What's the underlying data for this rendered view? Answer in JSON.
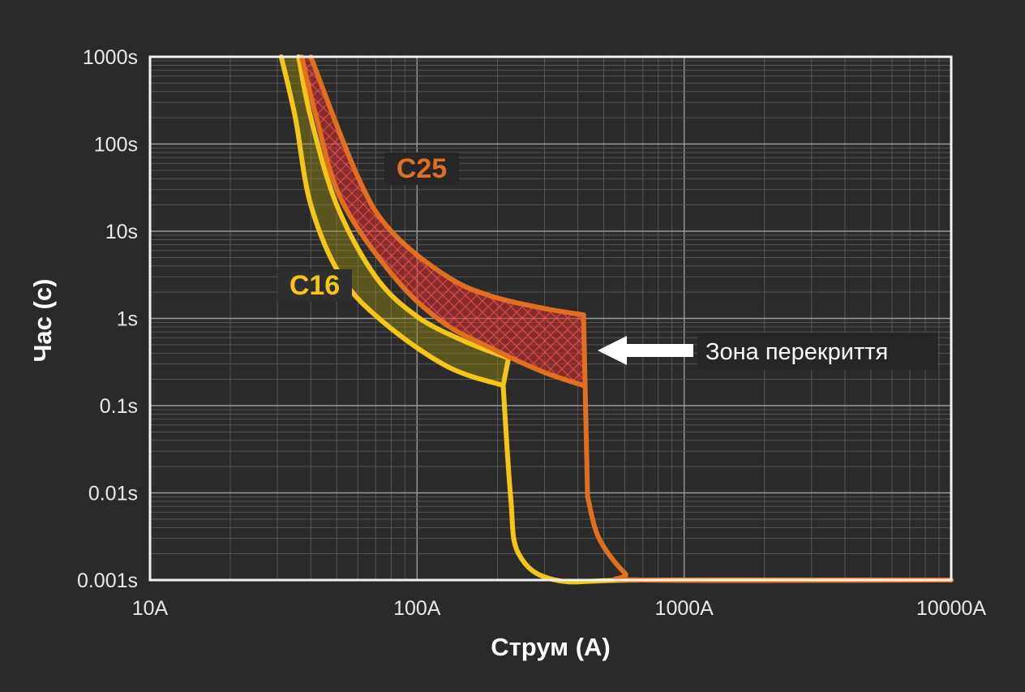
{
  "chart_data": {
    "type": "line",
    "xlabel": "Струм (А)",
    "ylabel": "Час (с)",
    "x_scale": "log",
    "y_scale": "log",
    "xlim": [
      10,
      10000
    ],
    "ylim": [
      0.001,
      1000
    ],
    "grid": true,
    "x_ticks": [
      {
        "value": 10,
        "label": "10A"
      },
      {
        "value": 100,
        "label": "100A"
      },
      {
        "value": 1000,
        "label": "1000A"
      },
      {
        "value": 10000,
        "label": "10000A"
      }
    ],
    "y_ticks": [
      {
        "value": 0.001,
        "label": "0.001s"
      },
      {
        "value": 0.01,
        "label": "0.01s"
      },
      {
        "value": 0.1,
        "label": "0.1s"
      },
      {
        "value": 1,
        "label": "1s"
      },
      {
        "value": 10,
        "label": "10s"
      },
      {
        "value": 100,
        "label": "100s"
      },
      {
        "value": 1000,
        "label": "1000s"
      }
    ],
    "series": [
      {
        "name": "C16",
        "color": "#f5c518",
        "upper": [
          [
            36,
            1000
          ],
          [
            40,
            200
          ],
          [
            50,
            20
          ],
          [
            70,
            3
          ],
          [
            100,
            1.05
          ],
          [
            150,
            0.55
          ],
          [
            220,
            0.35
          ]
        ],
        "lower": [
          [
            31,
            1000
          ],
          [
            35,
            200
          ],
          [
            40,
            20
          ],
          [
            52,
            3
          ],
          [
            75,
            0.9
          ],
          [
            130,
            0.28
          ],
          [
            210,
            0.17
          ]
        ],
        "instantaneous": [
          [
            220,
            0.35
          ],
          [
            210,
            0.17
          ],
          [
            224,
            0.009
          ],
          [
            240,
            0.002
          ],
          [
            330,
            0.001
          ],
          [
            700,
            0.001
          ],
          [
            10000,
            0.001
          ]
        ]
      },
      {
        "name": "C25",
        "color": "#e07020",
        "upper": [
          [
            40,
            1000
          ],
          [
            60,
            42
          ],
          [
            80,
            10
          ],
          [
            130,
            3
          ],
          [
            190,
            1.8
          ],
          [
            300,
            1.3
          ],
          [
            420,
            1.1
          ]
        ],
        "lower": [
          [
            37,
            1000
          ],
          [
            42,
            200
          ],
          [
            52,
            23
          ],
          [
            82,
            3
          ],
          [
            125,
            0.9
          ],
          [
            200,
            0.42
          ],
          [
            300,
            0.24
          ],
          [
            420,
            0.17
          ]
        ],
        "instantaneous": [
          [
            420,
            1.1
          ],
          [
            435,
            0.009
          ],
          [
            480,
            0.003
          ],
          [
            600,
            0.0012
          ],
          [
            700,
            0.001
          ],
          [
            10000,
            0.001
          ]
        ]
      }
    ],
    "annotations": [
      {
        "text": "C25",
        "color": "#e07020"
      },
      {
        "text": "C16",
        "color": "#f5c518"
      },
      {
        "text": "Зона перекриття",
        "color": "#ffffff"
      }
    ]
  }
}
